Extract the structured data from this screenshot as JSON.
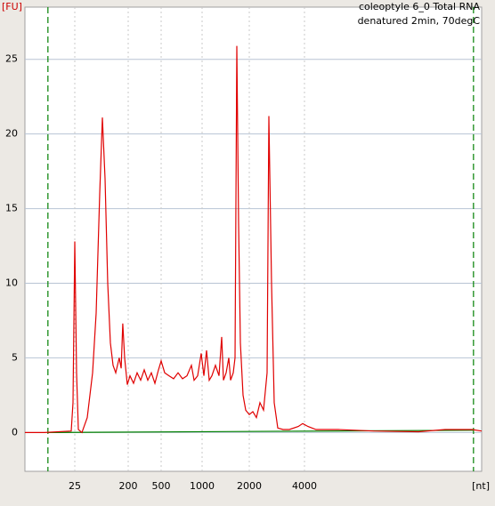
{
  "chart_data": {
    "type": "line",
    "title": "coleoptyle 6_0 Total RNA",
    "subtitle": "denatured 2min, 70degC",
    "y_label": "[FU]",
    "x_label": "[nt]",
    "xlim": [
      3.6,
      37000
    ],
    "xticks": [
      25,
      200,
      500,
      1000,
      2000,
      4000
    ],
    "ylim": [
      -2.6,
      28.5
    ],
    "yticks": [
      0,
      5,
      10,
      15,
      20,
      25
    ],
    "grid": true,
    "color": "#e00000",
    "x": [
      3.6,
      7.7,
      21.8,
      23.3,
      25,
      26.8,
      28.7,
      33,
      40.6,
      50,
      57.4,
      66,
      73.2,
      81.2,
      90.1,
      100,
      111,
      123,
      141,
      152,
      162,
      174,
      193,
      210,
      232,
      256,
      283,
      312,
      345,
      381,
      420,
      464,
      500,
      531,
      572,
      617,
      666,
      718,
      774,
      835,
      873,
      927,
      985,
      1026,
      1067,
      1110,
      1155,
      1217,
      1282,
      1333,
      1369,
      1423,
      1480,
      1520,
      1580,
      1622,
      1666,
      1710,
      1755,
      1825,
      1898,
      2000,
      2091,
      2187,
      2287,
      2392,
      2501,
      2558,
      2645,
      2736,
      2861,
      3058,
      3308,
      3699,
      3911,
      4183,
      4625,
      6117,
      9568,
      16731,
      23400,
      32720,
      37000
    ],
    "values": [
      0,
      0,
      0.1,
      2,
      12.8,
      4,
      0.2,
      0,
      1,
      4,
      8,
      16,
      21.1,
      17,
      10,
      6,
      4.5,
      4,
      5,
      4.3,
      7.3,
      5,
      3.2,
      3.8,
      3.3,
      4,
      3.5,
      4.2,
      3.5,
      4,
      3.3,
      4.2,
      4.8,
      4,
      3.8,
      3.6,
      4,
      3.6,
      3.8,
      4.5,
      3.5,
      3.8,
      5.3,
      3.8,
      5.5,
      3.5,
      3.8,
      4.5,
      3.8,
      6.4,
      3.5,
      4,
      5,
      3.5,
      4,
      5,
      25.9,
      14,
      6,
      2.5,
      1.5,
      1.2,
      1.4,
      1,
      2,
      1.5,
      4,
      21.2,
      10,
      2,
      0.3,
      0.2,
      0.2,
      0.4,
      0.6,
      0.4,
      0.2,
      0.2,
      0.1,
      0.05,
      0.2,
      0.2,
      0.1
    ],
    "baseline": {
      "color": "#008000",
      "x": [
        8.8,
        33400
      ],
      "values": [
        0,
        0.15
      ]
    },
    "markers": {
      "color": "#008000",
      "x": [
        8.8,
        33400
      ]
    }
  }
}
